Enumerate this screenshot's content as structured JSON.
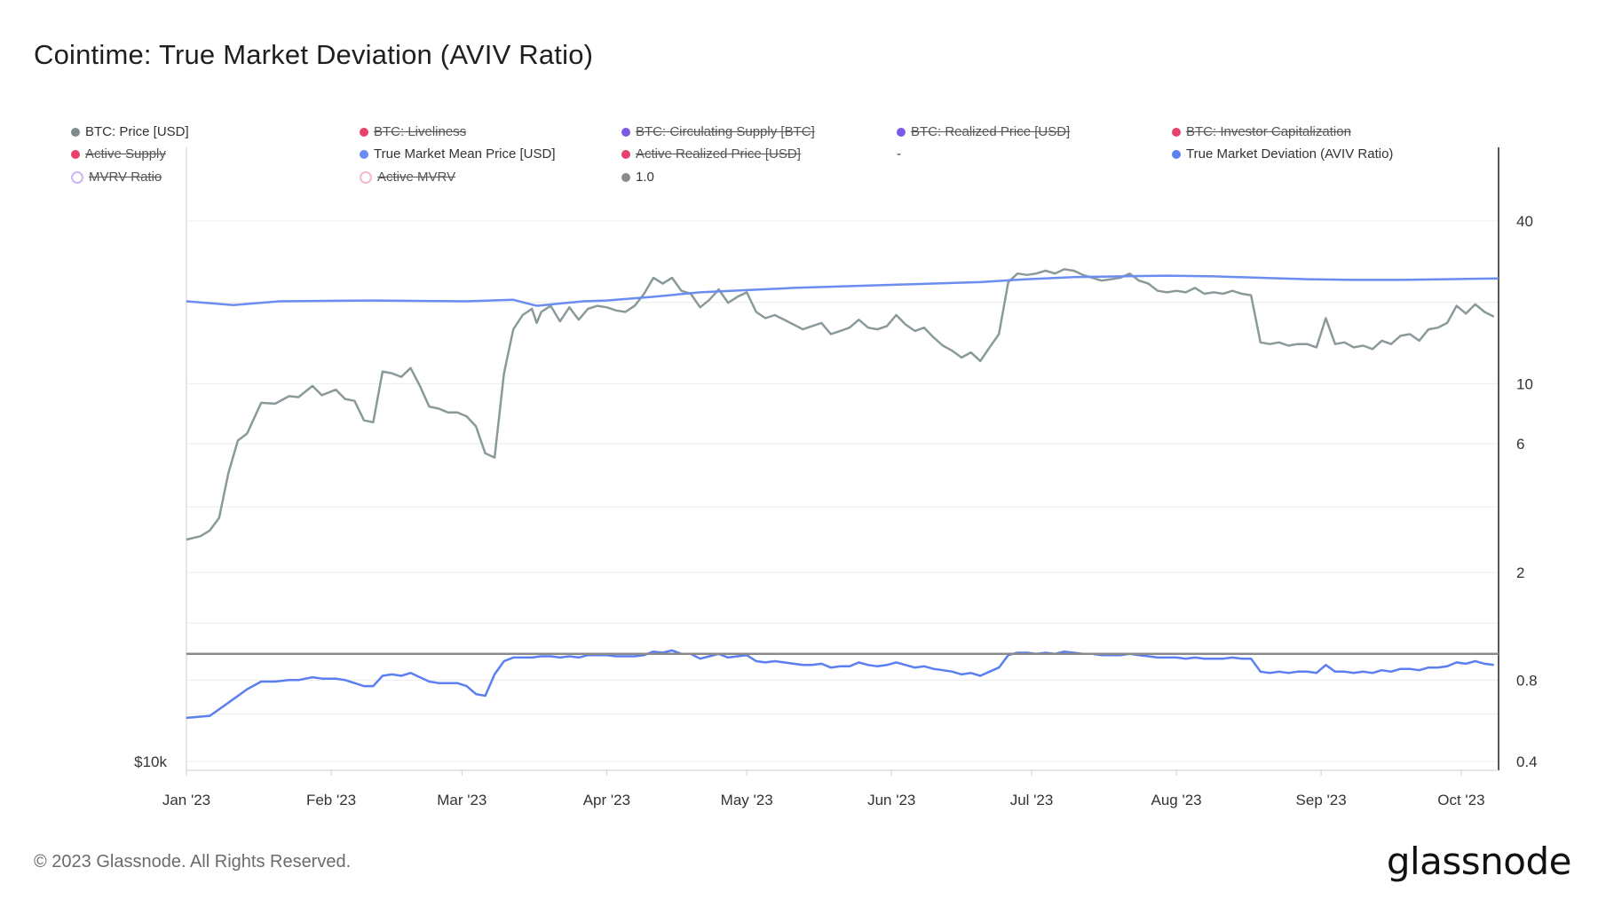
{
  "title": "Cointime: True Market Deviation (AVIV Ratio)",
  "footer": "© 2023 Glassnode. All Rights Reserved.",
  "brand": "glassnode",
  "legend": [
    {
      "label": "BTC: Price [USD]",
      "color": "#7f8c8d",
      "enabled": true
    },
    {
      "label": "BTC: Liveliness",
      "color": "#e8416b",
      "enabled": false
    },
    {
      "label": "BTC: Circulating Supply [BTC]",
      "color": "#7b5be6",
      "enabled": false
    },
    {
      "label": "BTC: Realized Price [USD]",
      "color": "#7b5be6",
      "enabled": false
    },
    {
      "label": "BTC: Investor Capitalization",
      "color": "#e8416b",
      "enabled": false
    },
    {
      "label": "Active Supply",
      "color": "#e8416b",
      "enabled": false
    },
    {
      "label": "True Market Mean Price [USD]",
      "color": "#6b8cf0",
      "enabled": true
    },
    {
      "label": "Active Realized Price [USD]",
      "color": "#e8416b",
      "enabled": false
    },
    {
      "label": "-",
      "color": "",
      "enabled": true
    },
    {
      "label": "True Market Deviation (AVIV Ratio)",
      "color": "#5b7ff0",
      "enabled": true
    },
    {
      "label": "MVRV Ratio",
      "color": "#c9b8f5",
      "enabled": false
    },
    {
      "label": "Active MVRV",
      "color": "#f5b8c4",
      "enabled": false
    },
    {
      "label": "1.0",
      "color": "#8a8a8a",
      "enabled": true
    }
  ],
  "chart_data": {
    "type": "line",
    "x_tick_labels": [
      "Jan '23",
      "Feb '23",
      "Mar '23",
      "Apr '23",
      "May '23",
      "Jun '23",
      "Jul '23",
      "Aug '23",
      "Sep '23",
      "Oct '23"
    ],
    "x_tick_days": [
      0,
      31,
      59,
      90,
      120,
      151,
      181,
      212,
      243,
      273
    ],
    "x_range_days": [
      0,
      281
    ],
    "left_axis": {
      "label": "$10k",
      "scale": "log"
    },
    "right_axis": {
      "scale": "log",
      "ticks": [
        0.4,
        0.8,
        2,
        6,
        10,
        40
      ],
      "range": [
        0.4,
        60
      ]
    },
    "series": [
      {
        "name": "BTC: Price [USD]",
        "color": "#8a9a9b",
        "unit": "USD",
        "days": [
          0,
          3,
          5,
          7,
          9,
          11,
          13,
          16,
          19,
          22,
          24,
          27,
          29,
          32,
          34,
          36,
          38,
          40,
          42,
          44,
          46,
          48,
          50,
          52,
          54,
          56,
          58,
          60,
          62,
          64,
          66,
          68,
          70,
          72,
          74,
          75,
          76,
          78,
          80,
          82,
          84,
          86,
          88,
          90,
          92,
          94,
          96,
          98,
          100,
          102,
          104,
          106,
          108,
          110,
          112,
          114,
          116,
          118,
          120,
          122,
          124,
          126,
          128,
          130,
          132,
          134,
          136,
          138,
          140,
          142,
          144,
          146,
          148,
          150,
          152,
          154,
          156,
          158,
          160,
          162,
          164,
          166,
          168,
          170,
          172,
          174,
          176,
          178,
          180,
          182,
          184,
          186,
          188,
          190,
          192,
          194,
          196,
          198,
          200,
          202,
          204,
          206,
          208,
          210,
          212,
          214,
          216,
          218,
          220,
          222,
          224,
          226,
          228,
          230,
          232,
          234,
          236,
          238,
          240,
          242,
          244,
          246,
          248,
          250,
          252,
          254,
          256,
          258,
          260,
          262,
          264,
          266,
          268,
          270,
          272,
          274,
          276,
          278,
          280
        ],
        "values": [
          16550,
          16680,
          16900,
          17400,
          19300,
          20800,
          21150,
          22700,
          22650,
          23050,
          23000,
          23600,
          23100,
          23400,
          22900,
          22800,
          21800,
          21700,
          24400,
          24300,
          24100,
          24600,
          23600,
          22500,
          22400,
          22200,
          22200,
          22000,
          21500,
          20200,
          20000,
          24300,
          26900,
          27800,
          28200,
          27300,
          28000,
          28400,
          27400,
          28300,
          27500,
          28200,
          28400,
          28300,
          28100,
          28000,
          28400,
          29200,
          30300,
          29900,
          30300,
          29400,
          29200,
          28300,
          28800,
          29500,
          28600,
          29000,
          29300,
          28000,
          27600,
          27800,
          27500,
          27200,
          26900,
          27100,
          27300,
          26600,
          26800,
          27000,
          27500,
          27000,
          26900,
          27100,
          27800,
          27200,
          26800,
          27000,
          26400,
          25900,
          25600,
          25200,
          25500,
          25000,
          25800,
          26600,
          30000,
          30600,
          30500,
          30600,
          30800,
          30600,
          30900,
          30800,
          30500,
          30300,
          30100,
          30200,
          30300,
          30600,
          30100,
          29900,
          29400,
          29300,
          29400,
          29300,
          29600,
          29200,
          29300,
          29200,
          29400,
          29200,
          29100,
          26100,
          26000,
          26100,
          25900,
          26000,
          26000,
          25800,
          27600,
          26000,
          26100,
          25800,
          25900,
          25700,
          26200,
          26000,
          26500,
          26600,
          26200,
          26900,
          27000,
          27300,
          28400,
          27900,
          28500,
          28000,
          27700
        ]
      },
      {
        "name": "True Market Mean Price [USD]",
        "color": "#6b8cf0",
        "unit": "USD",
        "days": [
          0,
          10,
          20,
          40,
          60,
          70,
          75,
          80,
          85,
          90,
          100,
          110,
          120,
          130,
          140,
          150,
          160,
          170,
          180,
          190,
          200,
          210,
          220,
          230,
          240,
          250,
          260,
          270,
          281
        ],
        "values": [
          28700,
          28450,
          28700,
          28750,
          28700,
          28800,
          28400,
          28550,
          28700,
          28750,
          29000,
          29300,
          29450,
          29600,
          29700,
          29800,
          29900,
          30000,
          30200,
          30350,
          30400,
          30450,
          30400,
          30300,
          30200,
          30150,
          30150,
          30200,
          30250
        ]
      },
      {
        "name": "True Market Deviation (AVIV Ratio)",
        "color": "#5b7ff0",
        "unit": "ratio",
        "days": [
          0,
          5,
          9,
          13,
          16,
          19,
          22,
          24,
          27,
          29,
          32,
          34,
          36,
          38,
          40,
          42,
          44,
          46,
          48,
          50,
          52,
          54,
          56,
          58,
          60,
          62,
          64,
          66,
          68,
          70,
          72,
          74,
          76,
          78,
          80,
          82,
          84,
          86,
          88,
          90,
          92,
          94,
          96,
          98,
          100,
          102,
          104,
          106,
          108,
          110,
          112,
          114,
          116,
          118,
          120,
          122,
          124,
          126,
          128,
          130,
          132,
          134,
          136,
          138,
          140,
          142,
          144,
          146,
          148,
          150,
          152,
          154,
          156,
          158,
          160,
          162,
          164,
          166,
          168,
          170,
          172,
          174,
          176,
          178,
          180,
          182,
          184,
          186,
          188,
          190,
          192,
          194,
          196,
          198,
          200,
          202,
          204,
          206,
          208,
          210,
          212,
          214,
          216,
          218,
          220,
          222,
          224,
          226,
          228,
          230,
          232,
          234,
          236,
          238,
          240,
          242,
          244,
          246,
          248,
          250,
          252,
          254,
          256,
          258,
          260,
          262,
          264,
          266,
          268,
          270,
          272,
          274,
          276,
          278,
          280
        ],
        "values": [
          0.58,
          0.59,
          0.66,
          0.74,
          0.79,
          0.79,
          0.8,
          0.8,
          0.82,
          0.81,
          0.81,
          0.8,
          0.78,
          0.76,
          0.76,
          0.83,
          0.84,
          0.83,
          0.85,
          0.82,
          0.79,
          0.78,
          0.78,
          0.78,
          0.76,
          0.71,
          0.7,
          0.84,
          0.94,
          0.97,
          0.97,
          0.97,
          0.98,
          0.98,
          0.97,
          0.98,
          0.97,
          0.99,
          0.99,
          0.99,
          0.98,
          0.98,
          0.98,
          0.99,
          1.02,
          1.01,
          1.03,
          1.0,
          1.0,
          0.96,
          0.98,
          1.0,
          0.97,
          0.98,
          0.99,
          0.94,
          0.93,
          0.94,
          0.93,
          0.92,
          0.91,
          0.91,
          0.92,
          0.89,
          0.9,
          0.9,
          0.93,
          0.91,
          0.9,
          0.91,
          0.93,
          0.91,
          0.89,
          0.9,
          0.88,
          0.87,
          0.86,
          0.84,
          0.85,
          0.83,
          0.86,
          0.89,
          0.99,
          1.01,
          1.01,
          1.0,
          1.01,
          1.0,
          1.02,
          1.01,
          1.0,
          1.0,
          0.99,
          0.99,
          0.99,
          1.0,
          0.99,
          0.98,
          0.97,
          0.97,
          0.97,
          0.96,
          0.97,
          0.96,
          0.96,
          0.96,
          0.97,
          0.96,
          0.96,
          0.86,
          0.85,
          0.86,
          0.85,
          0.86,
          0.86,
          0.85,
          0.91,
          0.86,
          0.86,
          0.85,
          0.86,
          0.85,
          0.87,
          0.86,
          0.88,
          0.88,
          0.87,
          0.89,
          0.89,
          0.9,
          0.93,
          0.92,
          0.94,
          0.92,
          0.91
        ]
      },
      {
        "name": "1.0",
        "color": "#8a8a8a",
        "unit": "ratio",
        "days": [
          0,
          281
        ],
        "values": [
          1.0,
          1.0
        ]
      }
    ]
  }
}
